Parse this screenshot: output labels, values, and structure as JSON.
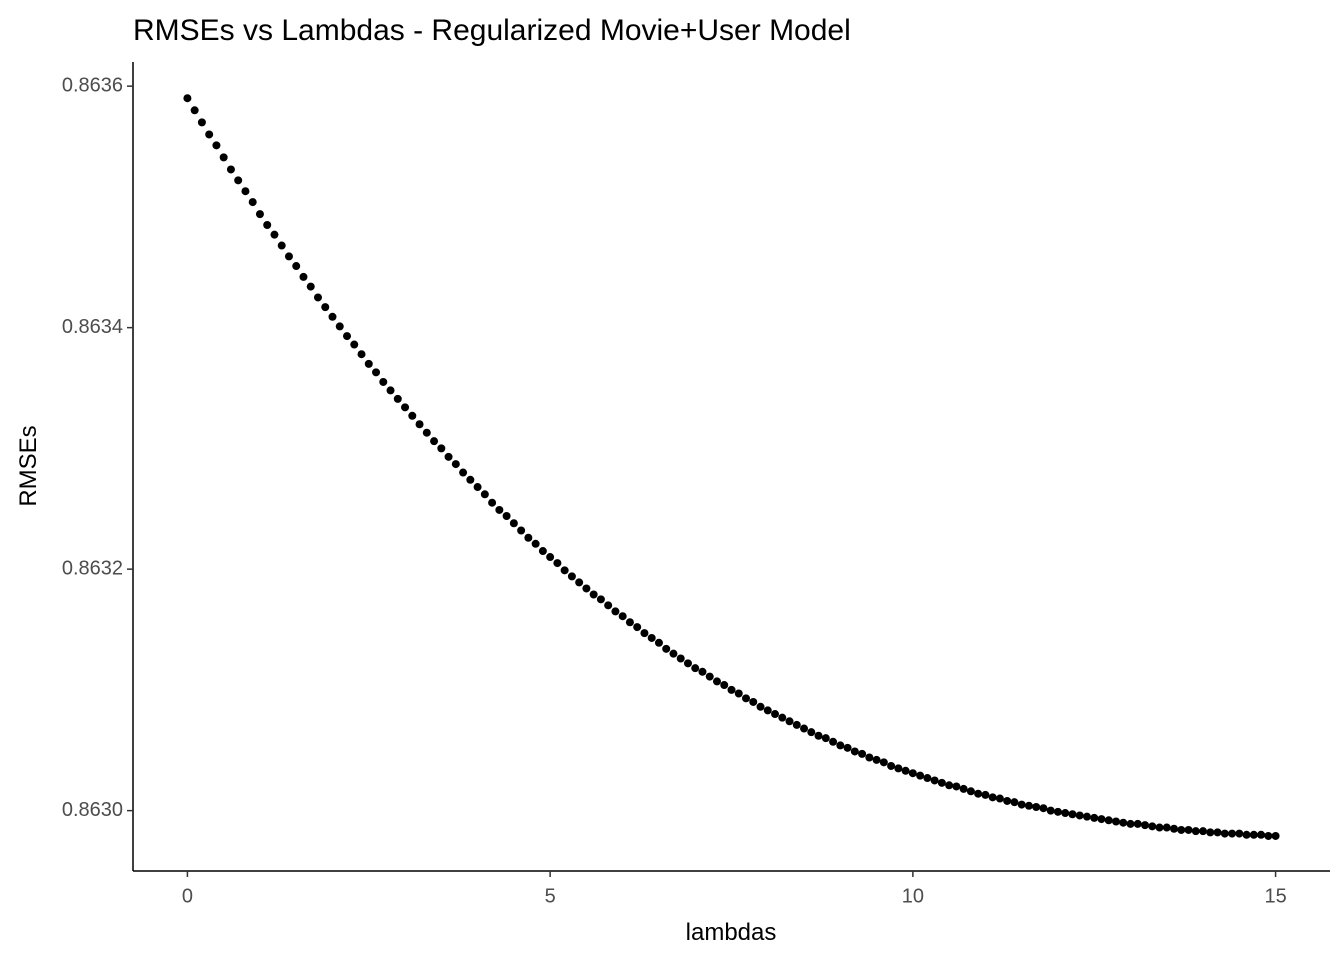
{
  "chart_data": {
    "type": "scatter",
    "title": "RMSEs vs Lambdas - Regularized Movie+User Model",
    "x_label": "lambdas",
    "y_label": "RMSEs",
    "color": "#000000",
    "xlim": [
      -0.75,
      15.75
    ],
    "xticks": [
      0,
      5,
      10,
      15
    ],
    "ylim": [
      0.86295,
      0.86362
    ],
    "yticks": [
      {
        "value": 0.863,
        "label": "0.8630"
      },
      {
        "value": 0.8632,
        "label": "0.8632"
      },
      {
        "value": 0.8634,
        "label": "0.8634"
      },
      {
        "value": 0.8636,
        "label": "0.8636"
      }
    ],
    "grid": false,
    "x": [
      0,
      0.1,
      0.2,
      0.3,
      0.4,
      0.5,
      0.6,
      0.7,
      0.8,
      0.9,
      1,
      1.1,
      1.2,
      1.3,
      1.4,
      1.5,
      1.6,
      1.7,
      1.8,
      1.9,
      2,
      2.1,
      2.2,
      2.3,
      2.4,
      2.5,
      2.6,
      2.7,
      2.8,
      2.9,
      3,
      3.1,
      3.2,
      3.3,
      3.4,
      3.5,
      3.6,
      3.7,
      3.8,
      3.9,
      4,
      4.1,
      4.2,
      4.3,
      4.4,
      4.5,
      4.6,
      4.7,
      4.8,
      4.9,
      5,
      5.1,
      5.2,
      5.3,
      5.4,
      5.5,
      5.6,
      5.7,
      5.8,
      5.9,
      6,
      6.1,
      6.2,
      6.3,
      6.4,
      6.5,
      6.6,
      6.7,
      6.8,
      6.9,
      7,
      7.1,
      7.2,
      7.3,
      7.4,
      7.5,
      7.6,
      7.7,
      7.8,
      7.9,
      8,
      8.1,
      8.2,
      8.3,
      8.4,
      8.5,
      8.6,
      8.7,
      8.8,
      8.9,
      9,
      9.1,
      9.2,
      9.3,
      9.4,
      9.5,
      9.6,
      9.7,
      9.8,
      9.9,
      10,
      10.1,
      10.2,
      10.3,
      10.4,
      10.5,
      10.6,
      10.7,
      10.8,
      10.9,
      11,
      11.1,
      11.2,
      11.3,
      11.4,
      11.5,
      11.6,
      11.7,
      11.8,
      11.9,
      12,
      12.1,
      12.2,
      12.3,
      12.4,
      12.5,
      12.6,
      12.7,
      12.8,
      12.9,
      13,
      13.1,
      13.2,
      13.3,
      13.4,
      13.5,
      13.6,
      13.7,
      13.8,
      13.9,
      14,
      14.1,
      14.2,
      14.3,
      14.4,
      14.5,
      14.6,
      14.7,
      14.8,
      14.9,
      15
    ],
    "values": [
      0.86359,
      0.86358,
      0.86357,
      0.86356,
      0.863551,
      0.863541,
      0.863531,
      0.863522,
      0.863513,
      0.863504,
      0.863494,
      0.863485,
      0.863477,
      0.863468,
      0.863459,
      0.863451,
      0.863442,
      0.863434,
      0.863425,
      0.863417,
      0.863409,
      0.863401,
      0.863393,
      0.863386,
      0.863378,
      0.86337,
      0.863363,
      0.863355,
      0.863348,
      0.863341,
      0.863334,
      0.863327,
      0.86332,
      0.863313,
      0.863306,
      0.8633,
      0.863293,
      0.863287,
      0.86328,
      0.863274,
      0.863268,
      0.863262,
      0.863255,
      0.863249,
      0.863244,
      0.863238,
      0.863232,
      0.863226,
      0.863221,
      0.863215,
      0.86321,
      0.863205,
      0.863199,
      0.863194,
      0.863189,
      0.863184,
      0.863179,
      0.863175,
      0.86317,
      0.863165,
      0.863161,
      0.863156,
      0.863152,
      0.863147,
      0.863143,
      0.863139,
      0.863134,
      0.86313,
      0.863126,
      0.863122,
      0.863118,
      0.863115,
      0.863111,
      0.863107,
      0.863104,
      0.8631,
      0.863097,
      0.863093,
      0.86309,
      0.863086,
      0.863083,
      0.86308,
      0.863077,
      0.863074,
      0.863071,
      0.863068,
      0.863065,
      0.863062,
      0.86306,
      0.863057,
      0.863054,
      0.863052,
      0.863049,
      0.863047,
      0.863044,
      0.863042,
      0.86304,
      0.863037,
      0.863035,
      0.863033,
      0.863031,
      0.863029,
      0.863027,
      0.863025,
      0.863023,
      0.863021,
      0.86302,
      0.863018,
      0.863016,
      0.863014,
      0.863013,
      0.863011,
      0.86301,
      0.863008,
      0.863007,
      0.863005,
      0.863004,
      0.863003,
      0.863002,
      0.863,
      0.862999,
      0.862998,
      0.862997,
      0.862996,
      0.862995,
      0.862994,
      0.862993,
      0.862992,
      0.862991,
      0.86299,
      0.862989,
      0.862989,
      0.862988,
      0.862987,
      0.862986,
      0.862986,
      0.862985,
      0.862984,
      0.862984,
      0.862983,
      0.862983,
      0.862982,
      0.862982,
      0.862981,
      0.862981,
      0.862981,
      0.86298,
      0.86298,
      0.86298,
      0.862979,
      0.862979
    ]
  }
}
